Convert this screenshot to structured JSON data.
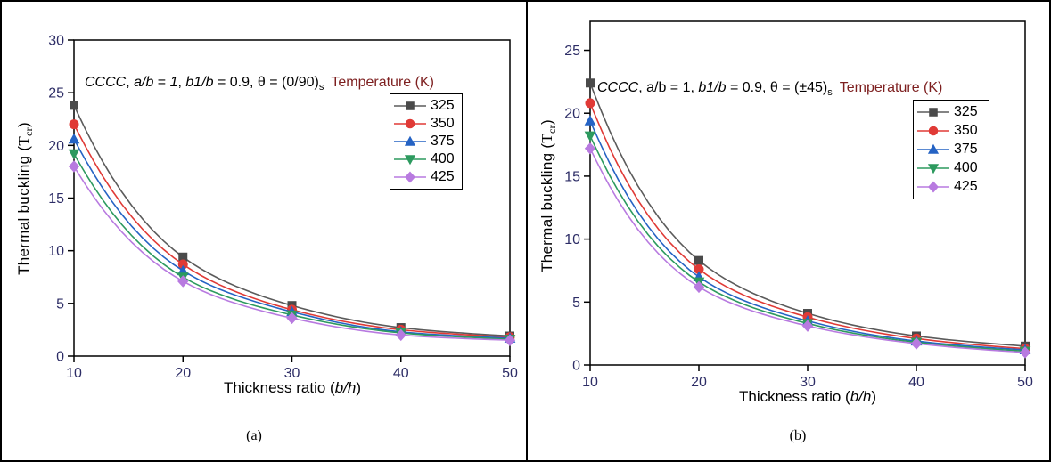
{
  "panel_labels": [
    "(a)",
    "(b)"
  ],
  "axes": {
    "ylabel_main": "Thermal buckling (",
    "ylabel_T": "T",
    "ylabel_sub": "cr",
    "ylabel_close": ")",
    "xlabel_main": "Thickness ratio (",
    "xlabel_var": "b/h",
    "xlabel_close": ")"
  },
  "colors": {
    "tick_label": "#2d2d66",
    "legend_title": "#7d1f1f",
    "frame": "#000000"
  },
  "chart_data": [
    {
      "type": "line",
      "title": "CCCC, a/b = 1, b1/b = 0.9, θ = (0/90)s",
      "annotation_segments": [
        {
          "text": "CCCC",
          "italic": true
        },
        {
          "text": ", ",
          "italic": false
        },
        {
          "text": "a/b",
          "italic": true
        },
        {
          "text": " = ",
          "italic": false
        },
        {
          "text": "1",
          "italic": true
        },
        {
          "text": ", ",
          "italic": false
        },
        {
          "text": "b1/b",
          "italic": true
        },
        {
          "text": " = 0.9, ",
          "italic": false
        },
        {
          "text": "θ = (0/90)",
          "italic": false
        },
        {
          "text": "s",
          "sub": true
        },
        {
          "text": " ",
          "italic": false
        },
        {
          "text": "Temperature (K)",
          "color": "#7d1f1f"
        }
      ],
      "xlabel": "Thickness ratio (b/h)",
      "ylabel": "Thermal buckling (Tcr)",
      "x": [
        10,
        20,
        30,
        40,
        50
      ],
      "xticks": [
        10,
        20,
        30,
        40,
        50
      ],
      "yticks": [
        0,
        5,
        10,
        15,
        20,
        25,
        30
      ],
      "xlim": [
        10,
        50
      ],
      "ylim": [
        0,
        30
      ],
      "grid": false,
      "legend_position": "upper right",
      "series": [
        {
          "name": "325",
          "marker": "square",
          "color": "#5b5b5b",
          "marker_color": "#4a4a4a",
          "values": [
            23.8,
            9.4,
            4.8,
            2.7,
            1.9
          ]
        },
        {
          "name": "350",
          "marker": "circle",
          "color": "#e03a36",
          "marker_color": "#e03a36",
          "values": [
            22.0,
            8.7,
            4.4,
            2.5,
            1.8
          ]
        },
        {
          "name": "375",
          "marker": "triangle-up",
          "color": "#2563c4",
          "marker_color": "#2563c4",
          "values": [
            20.6,
            8.1,
            4.2,
            2.3,
            1.7
          ]
        },
        {
          "name": "400",
          "marker": "triangle-down",
          "color": "#2d9a5f",
          "marker_color": "#2d9a5f",
          "values": [
            19.2,
            7.5,
            3.9,
            2.2,
            1.6
          ]
        },
        {
          "name": "425",
          "marker": "diamond",
          "color": "#b87ae0",
          "marker_color": "#b87ae0",
          "values": [
            18.0,
            7.1,
            3.6,
            2.0,
            1.5
          ]
        }
      ]
    },
    {
      "type": "line",
      "title": "CCCC,  a/b = 1, b1/b = 0.9, θ = (±45)s",
      "annotation_segments": [
        {
          "text": "CCCC",
          "italic": true
        },
        {
          "text": ",  ",
          "italic": false
        },
        {
          "text": "a/b = 1, ",
          "italic": false
        },
        {
          "text": "b1/b",
          "italic": true
        },
        {
          "text": " = 0.9, ",
          "italic": false
        },
        {
          "text": "θ = (±45)",
          "italic": false
        },
        {
          "text": "s",
          "sub": true
        },
        {
          "text": " ",
          "italic": false
        },
        {
          "text": "Temperature (K)",
          "color": "#7d1f1f"
        }
      ],
      "xlabel": "Thickness ratio (b/h)",
      "ylabel": "Thermal buckling (Tcr)",
      "x": [
        10,
        20,
        30,
        40,
        50
      ],
      "xticks": [
        10,
        20,
        30,
        40,
        50
      ],
      "yticks": [
        0,
        5,
        10,
        15,
        20,
        25
      ],
      "xlim": [
        10,
        50
      ],
      "ylim": [
        0,
        27.3
      ],
      "grid": false,
      "legend_position": "upper right",
      "series": [
        {
          "name": "325",
          "marker": "square",
          "color": "#5b5b5b",
          "marker_color": "#4a4a4a",
          "values": [
            22.4,
            8.3,
            4.1,
            2.3,
            1.5
          ]
        },
        {
          "name": "350",
          "marker": "circle",
          "color": "#e03a36",
          "marker_color": "#e03a36",
          "values": [
            20.8,
            7.6,
            3.8,
            2.1,
            1.3
          ]
        },
        {
          "name": "375",
          "marker": "triangle-up",
          "color": "#2563c4",
          "marker_color": "#2563c4",
          "values": [
            19.4,
            7.0,
            3.5,
            1.9,
            1.2
          ]
        },
        {
          "name": "400",
          "marker": "triangle-down",
          "color": "#2d9a5f",
          "marker_color": "#2d9a5f",
          "values": [
            18.2,
            6.6,
            3.3,
            1.8,
            1.1
          ]
        },
        {
          "name": "425",
          "marker": "diamond",
          "color": "#b87ae0",
          "marker_color": "#b87ae0",
          "values": [
            17.2,
            6.2,
            3.1,
            1.7,
            1.0
          ]
        }
      ]
    }
  ]
}
